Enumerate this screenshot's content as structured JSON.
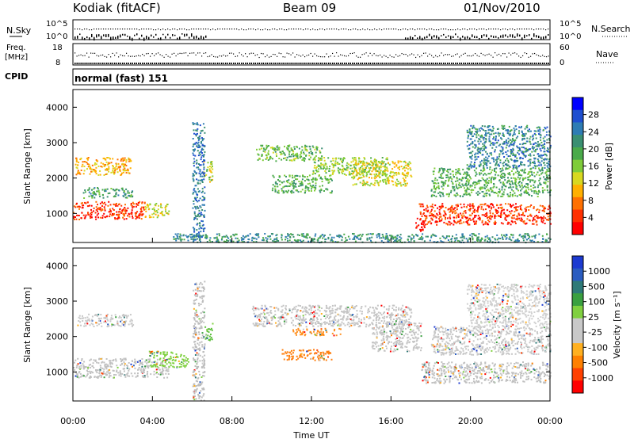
{
  "header": {
    "station": "Kodiak (fitACF)",
    "beam": "Beam 09",
    "date": "01/Nov/2010"
  },
  "top_panels": {
    "nsky_label": "N.Sky",
    "nsearch_label": "N.Search",
    "noise_ticks": [
      "10^5",
      "10^0"
    ],
    "freq_label_1": "Freq.",
    "freq_label_2": "[MHz]",
    "freq_ticks": [
      "18",
      "8"
    ],
    "nave_label": "Nave",
    "nave_ticks": [
      "60",
      "0"
    ],
    "cpid_label": "CPID",
    "cpid_value": "normal (fast) 151"
  },
  "chart_data": [
    {
      "type": "heatmap",
      "name": "power",
      "ylabel": "Slant Range [km]",
      "ylim": [
        180,
        4500
      ],
      "yticks": [
        "1000",
        "2000",
        "3000",
        "4000"
      ],
      "colorbar_label": "Power [dB]",
      "colorbar_ticks": [
        "4",
        "8",
        "12",
        "16",
        "20",
        "24",
        "28"
      ],
      "colorbar_colors": [
        "#0000ff",
        "#1f4fd0",
        "#2e7cb4",
        "#3a8f72",
        "#4aaa4a",
        "#7fcc3a",
        "#d8d820",
        "#ffb000",
        "#ff7000",
        "#ff3000",
        "#ff0000"
      ],
      "blobs": [
        {
          "t0": 0.0,
          "t1": 3.6,
          "r0": 850,
          "r1": 1350,
          "level": 0.92
        },
        {
          "t0": 3.6,
          "t1": 4.8,
          "r0": 900,
          "r1": 1300,
          "level": 0.6
        },
        {
          "t0": 0.1,
          "t1": 2.9,
          "r0": 2100,
          "r1": 2600,
          "level": 0.7
        },
        {
          "t0": 0.5,
          "t1": 3.0,
          "r0": 1450,
          "r1": 1750,
          "level": 0.35
        },
        {
          "t0": 6.5,
          "t1": 7.0,
          "r0": 1900,
          "r1": 2500,
          "level": 0.55
        },
        {
          "t0": 9.2,
          "t1": 12.5,
          "r0": 2500,
          "r1": 2950,
          "level": 0.45
        },
        {
          "t0": 12.0,
          "t1": 15.8,
          "r0": 2100,
          "r1": 2600,
          "level": 0.5
        },
        {
          "t0": 14.0,
          "t1": 17.0,
          "r0": 1800,
          "r1": 2500,
          "level": 0.6
        },
        {
          "t0": 10.0,
          "t1": 13.0,
          "r0": 1600,
          "r1": 2100,
          "level": 0.4
        },
        {
          "t0": 17.4,
          "t1": 24.0,
          "r0": 700,
          "r1": 1300,
          "level": 0.9
        },
        {
          "t0": 18.0,
          "t1": 24.0,
          "r0": 1500,
          "r1": 2300,
          "level": 0.4
        },
        {
          "t0": 19.8,
          "t1": 24.0,
          "r0": 2300,
          "r1": 3500,
          "level": 0.25
        },
        {
          "t0": 5.0,
          "t1": 24.0,
          "r0": 200,
          "r1": 450,
          "level": 0.3
        },
        {
          "t0": 6.0,
          "t1": 6.6,
          "r0": 200,
          "r1": 3600,
          "level": 0.2
        },
        {
          "t0": 17.2,
          "t1": 17.7,
          "r0": 500,
          "r1": 900,
          "level": 1.0
        }
      ]
    },
    {
      "type": "heatmap",
      "name": "velocity",
      "xlabel": "Time UT",
      "ylabel": "Slant Range [km]",
      "ylim": [
        180,
        4500
      ],
      "yticks": [
        "1000",
        "2000",
        "3000",
        "4000"
      ],
      "xticks": [
        "00:00",
        "04:00",
        "08:00",
        "12:00",
        "16:00",
        "20:00",
        "00:00"
      ],
      "colorbar_label": "Velocity [m s⁻¹]",
      "colorbar_ticks": [
        "1000",
        "500",
        "100",
        "25",
        "-25",
        "-100",
        "-500",
        "-1000"
      ],
      "colorbar_colors": [
        "#1c3ad0",
        "#2a5cc0",
        "#2e7a78",
        "#3aa040",
        "#80d040",
        "#c8c8c8",
        "#c8c8c8",
        "#ffb020",
        "#ff8000",
        "#ff4000",
        "#ff0000"
      ],
      "blobs": [
        {
          "t0": 0.0,
          "t1": 4.8,
          "r0": 850,
          "r1": 1400,
          "color": "#c0c0c0"
        },
        {
          "t0": 0.2,
          "t1": 3.0,
          "r0": 2300,
          "r1": 2650,
          "color": "#c8c8c8"
        },
        {
          "t0": 3.8,
          "t1": 5.8,
          "r0": 1150,
          "r1": 1600,
          "color": "#7fd040"
        },
        {
          "t0": 10.5,
          "t1": 13.0,
          "r0": 1350,
          "r1": 1650,
          "color": "#ff8010"
        },
        {
          "t0": 11.0,
          "t1": 13.5,
          "r0": 2050,
          "r1": 2250,
          "color": "#ff9020"
        },
        {
          "t0": 9.0,
          "t1": 17.0,
          "r0": 2300,
          "r1": 2900,
          "color": "#c4c4c4"
        },
        {
          "t0": 15.0,
          "t1": 17.5,
          "r0": 1600,
          "r1": 2400,
          "color": "#c4c4c4"
        },
        {
          "t0": 17.5,
          "t1": 24.0,
          "r0": 700,
          "r1": 1300,
          "color": "#c0c0c0"
        },
        {
          "t0": 18.0,
          "t1": 24.0,
          "r0": 1500,
          "r1": 2300,
          "color": "#c8c8c8"
        },
        {
          "t0": 19.8,
          "t1": 24.0,
          "r0": 2300,
          "r1": 3500,
          "color": "#d0d0d0"
        },
        {
          "t0": 6.0,
          "t1": 6.6,
          "r0": 200,
          "r1": 3600,
          "color": "#bdbdbd"
        },
        {
          "t0": 6.6,
          "t1": 7.0,
          "r0": 1900,
          "r1": 2400,
          "color": "#60c040"
        }
      ]
    }
  ]
}
